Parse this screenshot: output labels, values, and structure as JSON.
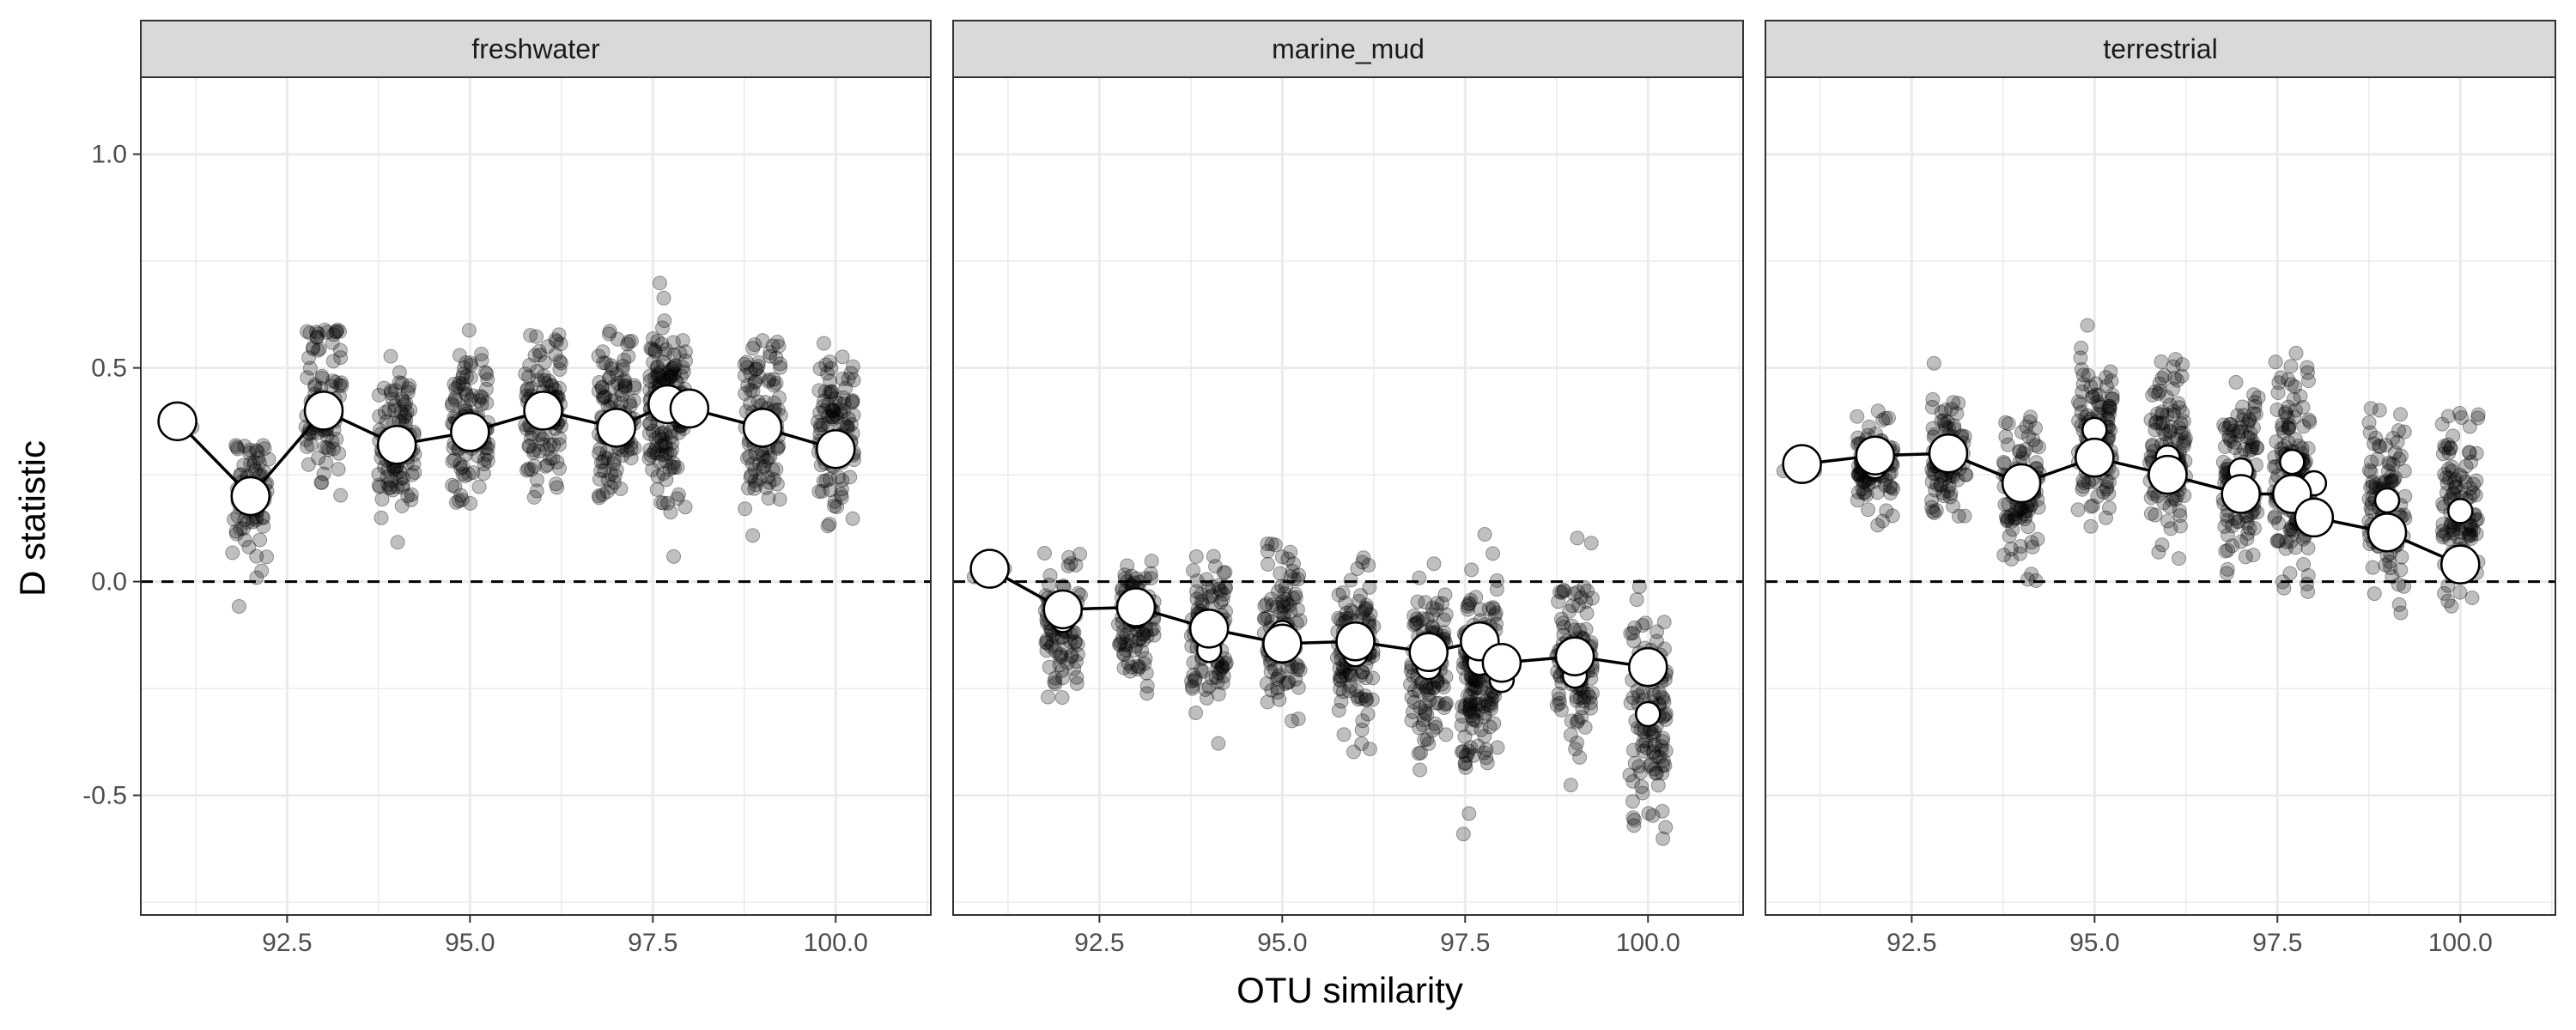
{
  "chart_data": {
    "type": "scatter",
    "xlabel": "OTU similarity",
    "ylabel": "D statistic",
    "x_range": [
      90.5,
      101.3
    ],
    "y_range": [
      -0.78,
      1.18
    ],
    "x_ticks": [
      92.5,
      95.0,
      97.5,
      100.0
    ],
    "x_tick_labels": [
      "92.5",
      "95.0",
      "97.5",
      "100.0"
    ],
    "y_ticks": [
      -0.5,
      0.0,
      0.5,
      1.0
    ],
    "y_tick_labels": [
      "-0.5",
      "0.0",
      "0.5",
      "1.0"
    ],
    "reference_line": {
      "y": 0.0,
      "style": "dashed"
    },
    "grid": true,
    "colors": {
      "points": "#000000",
      "mean_fill": "#ffffff",
      "mean_stroke": "#000000",
      "strip_fill": "#d9d9d9",
      "grid": "#ebebeb"
    },
    "panels": [
      {
        "label": "freshwater",
        "mean_points": [
          {
            "x": 91.0,
            "y": 0.375
          },
          {
            "x": 92.0,
            "y": 0.2
          },
          {
            "x": 93.0,
            "y": 0.4
          },
          {
            "x": 94.0,
            "y": 0.32
          },
          {
            "x": 95.0,
            "y": 0.35
          },
          {
            "x": 96.0,
            "y": 0.4
          },
          {
            "x": 97.0,
            "y": 0.36
          },
          {
            "x": 97.7,
            "y": 0.415
          },
          {
            "x": 98.0,
            "y": 0.405
          },
          {
            "x": 99.0,
            "y": 0.36
          },
          {
            "x": 100.0,
            "y": 0.31
          }
        ],
        "secondary_means": [],
        "replicates": [
          {
            "x": 91.0,
            "mean": 0.375,
            "sd": 0.015,
            "min": 0.34,
            "max": 0.4,
            "n": 6
          },
          {
            "x": 92.0,
            "mean": 0.2,
            "sd": 0.08,
            "min": -0.1,
            "max": 0.32,
            "n": 70
          },
          {
            "x": 93.0,
            "mean": 0.42,
            "sd": 0.09,
            "min": 0.08,
            "max": 0.59,
            "n": 90
          },
          {
            "x": 94.0,
            "mean": 0.33,
            "sd": 0.09,
            "min": 0.07,
            "max": 0.53,
            "n": 100
          },
          {
            "x": 95.0,
            "mean": 0.38,
            "sd": 0.09,
            "min": 0.17,
            "max": 0.6,
            "n": 110
          },
          {
            "x": 96.0,
            "mean": 0.41,
            "sd": 0.09,
            "min": 0.16,
            "max": 0.58,
            "n": 110
          },
          {
            "x": 97.0,
            "mean": 0.38,
            "sd": 0.1,
            "min": 0.06,
            "max": 0.59,
            "n": 110
          },
          {
            "x": 97.7,
            "mean": 0.42,
            "sd": 0.11,
            "min": 0.05,
            "max": 0.73,
            "n": 160
          },
          {
            "x": 99.0,
            "mean": 0.37,
            "sd": 0.1,
            "min": 0.08,
            "max": 0.57,
            "n": 110
          },
          {
            "x": 100.0,
            "mean": 0.34,
            "sd": 0.1,
            "min": 0.12,
            "max": 0.56,
            "n": 110
          }
        ]
      },
      {
        "label": "marine_mud",
        "mean_points": [
          {
            "x": 91.0,
            "y": 0.03
          },
          {
            "x": 92.0,
            "y": -0.065
          },
          {
            "x": 93.0,
            "y": -0.06
          },
          {
            "x": 94.0,
            "y": -0.11
          },
          {
            "x": 95.0,
            "y": -0.145
          },
          {
            "x": 96.0,
            "y": -0.14
          },
          {
            "x": 97.0,
            "y": -0.165
          },
          {
            "x": 97.7,
            "y": -0.14
          },
          {
            "x": 98.0,
            "y": -0.19
          },
          {
            "x": 99.0,
            "y": -0.175
          },
          {
            "x": 100.0,
            "y": -0.2
          }
        ],
        "secondary_means": [
          {
            "x": 92.0,
            "y": -0.09
          },
          {
            "x": 93.0,
            "y": -0.08
          },
          {
            "x": 94.0,
            "y": -0.16
          },
          {
            "x": 95.0,
            "y": -0.12
          },
          {
            "x": 96.0,
            "y": -0.17
          },
          {
            "x": 97.0,
            "y": -0.2
          },
          {
            "x": 97.7,
            "y": -0.19
          },
          {
            "x": 98.0,
            "y": -0.23
          },
          {
            "x": 99.0,
            "y": -0.22
          },
          {
            "x": 100.0,
            "y": -0.31
          }
        ],
        "replicates": [
          {
            "x": 91.0,
            "mean": 0.02,
            "sd": 0.015,
            "min": -0.02,
            "max": 0.05,
            "n": 6
          },
          {
            "x": 92.0,
            "mean": -0.1,
            "sd": 0.08,
            "min": -0.28,
            "max": 0.07,
            "n": 90
          },
          {
            "x": 93.0,
            "mean": -0.1,
            "sd": 0.07,
            "min": -0.35,
            "max": 0.09,
            "n": 90
          },
          {
            "x": 94.0,
            "mean": -0.13,
            "sd": 0.09,
            "min": -0.38,
            "max": 0.06,
            "n": 110
          },
          {
            "x": 95.0,
            "mean": -0.12,
            "sd": 0.09,
            "min": -0.33,
            "max": 0.09,
            "n": 110
          },
          {
            "x": 96.0,
            "mean": -0.17,
            "sd": 0.1,
            "min": -0.44,
            "max": 0.1,
            "n": 110
          },
          {
            "x": 97.0,
            "mean": -0.2,
            "sd": 0.1,
            "min": -0.53,
            "max": 0.06,
            "n": 110
          },
          {
            "x": 97.7,
            "mean": -0.21,
            "sd": 0.11,
            "min": -0.6,
            "max": 0.14,
            "n": 160
          },
          {
            "x": 99.0,
            "mean": -0.2,
            "sd": 0.1,
            "min": -0.55,
            "max": 0.11,
            "n": 110
          },
          {
            "x": 100.0,
            "mean": -0.3,
            "sd": 0.12,
            "min": -0.69,
            "max": 0.01,
            "n": 110
          }
        ]
      },
      {
        "label": "terrestrial",
        "mean_points": [
          {
            "x": 91.0,
            "y": 0.275
          },
          {
            "x": 92.0,
            "y": 0.295
          },
          {
            "x": 93.0,
            "y": 0.3
          },
          {
            "x": 94.0,
            "y": 0.23
          },
          {
            "x": 95.0,
            "y": 0.29
          },
          {
            "x": 96.0,
            "y": 0.25
          },
          {
            "x": 97.0,
            "y": 0.205
          },
          {
            "x": 97.7,
            "y": 0.205
          },
          {
            "x": 98.0,
            "y": 0.15
          },
          {
            "x": 99.0,
            "y": 0.115
          },
          {
            "x": 100.0,
            "y": 0.04
          }
        ],
        "secondary_means": [
          {
            "x": 92.0,
            "y": 0.27
          },
          {
            "x": 93.0,
            "y": 0.29
          },
          {
            "x": 94.0,
            "y": 0.24
          },
          {
            "x": 95.0,
            "y": 0.355
          },
          {
            "x": 96.0,
            "y": 0.29
          },
          {
            "x": 97.0,
            "y": 0.26
          },
          {
            "x": 97.7,
            "y": 0.28
          },
          {
            "x": 98.0,
            "y": 0.23
          },
          {
            "x": 99.0,
            "y": 0.19
          },
          {
            "x": 100.0,
            "y": 0.165
          }
        ],
        "replicates": [
          {
            "x": 91.0,
            "mean": 0.275,
            "sd": 0.01,
            "min": 0.25,
            "max": 0.3,
            "n": 6
          },
          {
            "x": 92.0,
            "mean": 0.27,
            "sd": 0.06,
            "min": 0.13,
            "max": 0.4,
            "n": 90
          },
          {
            "x": 93.0,
            "mean": 0.29,
            "sd": 0.07,
            "min": 0.1,
            "max": 0.55,
            "n": 90
          },
          {
            "x": 94.0,
            "mean": 0.22,
            "sd": 0.09,
            "min": 0.0,
            "max": 0.39,
            "n": 100
          },
          {
            "x": 95.0,
            "mean": 0.34,
            "sd": 0.1,
            "min": 0.12,
            "max": 0.63,
            "n": 110
          },
          {
            "x": 96.0,
            "mean": 0.3,
            "sd": 0.1,
            "min": 0.01,
            "max": 0.57,
            "n": 110
          },
          {
            "x": 97.0,
            "mean": 0.26,
            "sd": 0.1,
            "min": -0.02,
            "max": 0.48,
            "n": 110
          },
          {
            "x": 97.7,
            "mean": 0.25,
            "sd": 0.11,
            "min": -0.07,
            "max": 0.55,
            "n": 160
          },
          {
            "x": 99.0,
            "mean": 0.19,
            "sd": 0.1,
            "min": -0.08,
            "max": 0.55,
            "n": 110
          },
          {
            "x": 100.0,
            "mean": 0.16,
            "sd": 0.11,
            "min": -0.14,
            "max": 0.4,
            "n": 110
          }
        ]
      }
    ]
  }
}
